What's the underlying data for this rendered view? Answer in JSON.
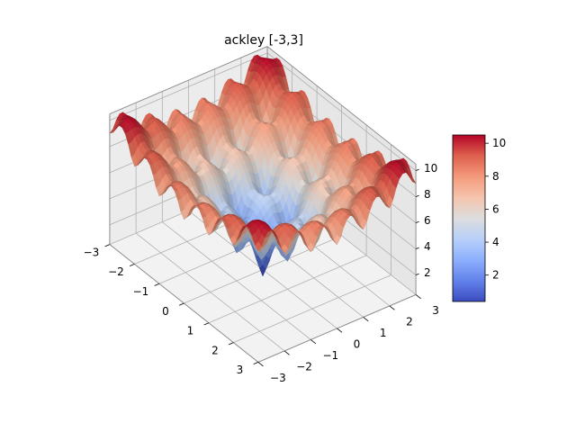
{
  "chart_data": {
    "type": "surface3d",
    "title": "ackley [-3,3]",
    "function": "ackley",
    "xlabel": "",
    "ylabel": "",
    "zlabel": "",
    "x_range": [
      -3,
      3
    ],
    "y_range": [
      -3,
      3
    ],
    "z_range": [
      0.5,
      10.5
    ],
    "x_ticks": [
      -3,
      -2,
      -1,
      0,
      1,
      2,
      3
    ],
    "y_ticks": [
      -3,
      -2,
      -1,
      0,
      1,
      2,
      3
    ],
    "z_ticks": [
      2,
      4,
      6,
      8,
      10
    ],
    "x_tick_labels": [
      "−3",
      "−2",
      "−1",
      "0",
      "1",
      "2",
      "3"
    ],
    "y_tick_labels": [
      "−3",
      "−2",
      "−1",
      "0",
      "1",
      "2",
      "3"
    ],
    "z_tick_labels": [
      "2",
      "4",
      "6",
      "8",
      "10"
    ],
    "colormap": "coolwarm",
    "colorbar": {
      "min": 0.4,
      "max": 10.5,
      "ticks": [
        2,
        4,
        6,
        8,
        10
      ],
      "tick_labels": [
        "2",
        "4",
        "6",
        "8",
        "10"
      ],
      "placement": "right"
    },
    "grid": true,
    "pane_color": "#f2f2f2"
  }
}
